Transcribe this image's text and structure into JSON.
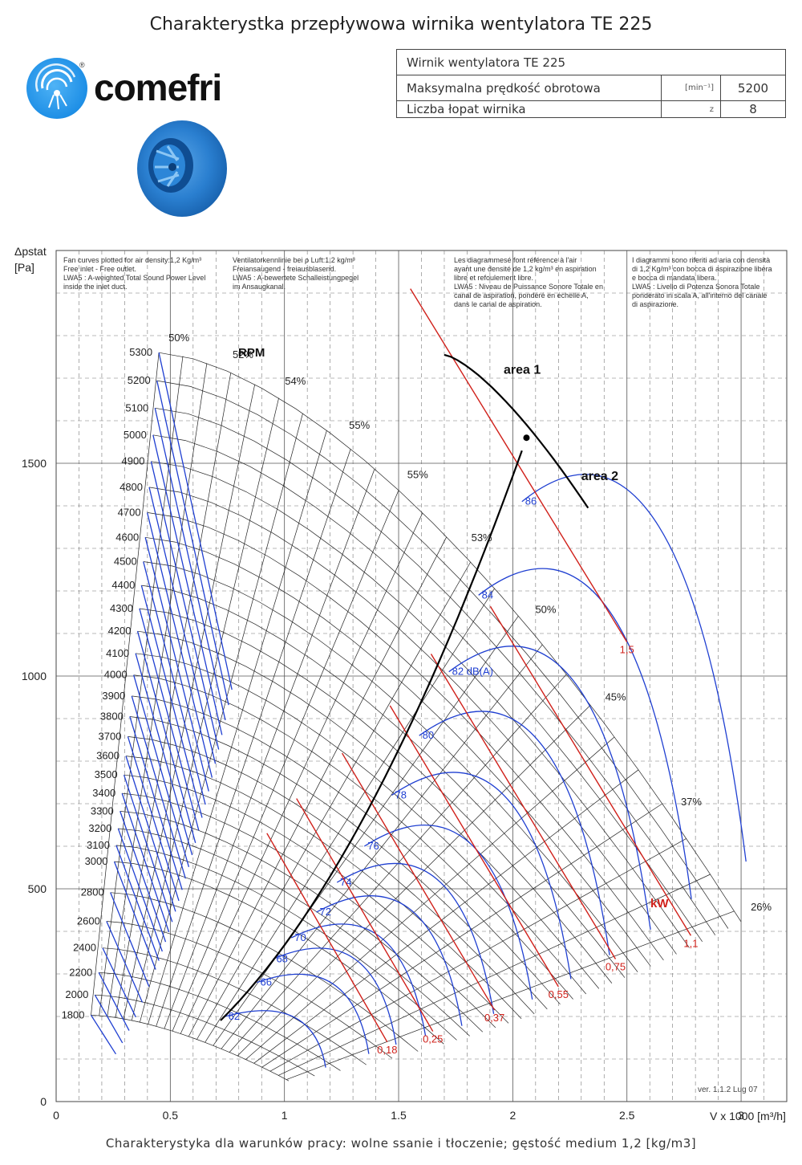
{
  "title": "Charakterystka przepływowa wirnika wentylatora TE 225",
  "logo": {
    "text": "comefri",
    "reg": "®"
  },
  "spec": {
    "rows": [
      {
        "label": "Wirnik wentylatora TE 225",
        "unit": "",
        "value": ""
      },
      {
        "label": "Maksymalna prędkość obrotowa",
        "unit": "[min⁻¹]",
        "value": "5200"
      },
      {
        "label": "Liczba łopat wirnika",
        "unit": "z",
        "value": "8"
      }
    ]
  },
  "notes": [
    [
      "Fan curves plotted for air density:1,2 Kg/m³",
      "Free inlet - Free outlet.",
      "LWA5 : A-weighted Total Sound Power Level",
      "inside the inlet duct."
    ],
    [
      "Ventilatorkennlinie bei ρ Luft:1,2 kg/m³",
      "Freiansaugend - freiausblasend.",
      "LWA5 : A-bewertete Schalleistungpegel",
      "im Ansaugkanal."
    ],
    [
      "Les diagrammesé font référence à l'air",
      "ayant une densité de 1,2 kg/m³ en aspiration",
      "libre et refoulement libre.",
      "LWA5 : Niveau de Puissance Sonore Totale en",
      "canal de aspiration, pondéré en échelle A,",
      "dans le canal de aspiration."
    ],
    [
      "I diagrammi sono riferiti ad aria con densità",
      "di 1,2 Kg/m³ con bocca di aspirazione libera",
      "e bocca di mandata libera.",
      "LWA5 : Livello di Potenza Sonora Totale",
      "ponderato in scala A, all'interno del canale",
      "di aspirazione."
    ]
  ],
  "version": "ver. 1.1.2 Lug 07",
  "footer": "Charakterystyka dla warunków pracy: wolne ssanie i tłoczenie; gęstość medium 1,2 [kg/m3]",
  "colors": {
    "fan_curve": "#1f3fd1",
    "power": "#d0201a",
    "noise": "#1f3fd1",
    "grid": "#333333",
    "system": "#000000"
  },
  "chart_data": {
    "type": "line",
    "title": "",
    "xlabel": "V x 1000 [m³/h]",
    "ylabel": "Δpstat [Pa]",
    "xlim": [
      0,
      3.2
    ],
    "ylim": [
      0,
      2000
    ],
    "xticks": [
      {
        "v": 0,
        "label": "0"
      },
      {
        "v": 0.5,
        "label": "0.5"
      },
      {
        "v": 1,
        "label": "1"
      },
      {
        "v": 1.5,
        "label": "1.5"
      },
      {
        "v": 2,
        "label": "2"
      },
      {
        "v": 2.5,
        "label": "2.5"
      },
      {
        "v": 3,
        "label": "3"
      }
    ],
    "yticks": [
      {
        "v": 0,
        "label": "0"
      },
      {
        "v": 500,
        "label": "500"
      },
      {
        "v": 1000,
        "label": "1000"
      },
      {
        "v": 1500,
        "label": "1500"
      }
    ],
    "y_unit_label": "[Pa]",
    "y_axis_label": "Δpstat",
    "rpm_label": "RPM",
    "rpm": [
      1800,
      2000,
      2200,
      2400,
      2600,
      2800,
      3000,
      3100,
      3200,
      3300,
      3400,
      3500,
      3600,
      3700,
      3800,
      3900,
      4000,
      4100,
      4200,
      4300,
      4400,
      4500,
      4600,
      4700,
      4800,
      4900,
      5000,
      5100,
      5200,
      5300
    ],
    "reference": {
      "rpm": 5300,
      "shut_off_pa": 1760,
      "max_flow": 3.0,
      "min_flow": 0.45,
      "min_flow_frac": 0.15
    },
    "efficiency_labels": [
      {
        "label": "50%",
        "frac": 0.0
      },
      {
        "label": "52%",
        "frac": 0.11
      },
      {
        "label": "54%",
        "frac": 0.2
      },
      {
        "label": "55%",
        "frac": 0.31
      },
      {
        "label": "55%",
        "frac": 0.41
      },
      {
        "label": "53%",
        "frac": 0.52
      },
      {
        "label": "50%",
        "frac": 0.63
      },
      {
        "label": "45%",
        "frac": 0.75
      },
      {
        "label": "37%",
        "frac": 0.88
      },
      {
        "label": "26%",
        "frac": 1.0
      }
    ],
    "power_label": "kW",
    "power_lines": [
      {
        "label": "0,18",
        "x": 1.45,
        "y": 140
      },
      {
        "label": "0,25",
        "x": 1.65,
        "y": 165
      },
      {
        "label": "0,37",
        "x": 1.92,
        "y": 215
      },
      {
        "label": "0,55",
        "x": 2.2,
        "y": 270
      },
      {
        "label": "0,75",
        "x": 2.45,
        "y": 335
      },
      {
        "label": "1,1",
        "x": 2.78,
        "y": 390
      },
      {
        "label": "1,5",
        "x": 2.5,
        "y": 1080
      }
    ],
    "noise_label_suffix": " dB(A)",
    "noise_levels": [
      {
        "label": "62",
        "x": 0.74,
        "y": 200
      },
      {
        "label": "66",
        "x": 0.88,
        "y": 280
      },
      {
        "label": "68",
        "x": 0.95,
        "y": 335
      },
      {
        "label": "70",
        "x": 1.03,
        "y": 385
      },
      {
        "label": "72",
        "x": 1.14,
        "y": 445
      },
      {
        "label": "74",
        "x": 1.23,
        "y": 515
      },
      {
        "label": "76",
        "x": 1.35,
        "y": 600
      },
      {
        "label": "78",
        "x": 1.47,
        "y": 720
      },
      {
        "label": "80",
        "x": 1.59,
        "y": 860
      },
      {
        "label": "82",
        "x": 1.72,
        "y": 1010
      },
      {
        "label": "84",
        "x": 1.85,
        "y": 1190
      },
      {
        "label": "86",
        "x": 2.04,
        "y": 1410
      }
    ],
    "areas": [
      {
        "label": "area 1",
        "x": 1.96,
        "y": 1710
      },
      {
        "label": "area 2",
        "x": 2.3,
        "y": 1460
      }
    ]
  }
}
